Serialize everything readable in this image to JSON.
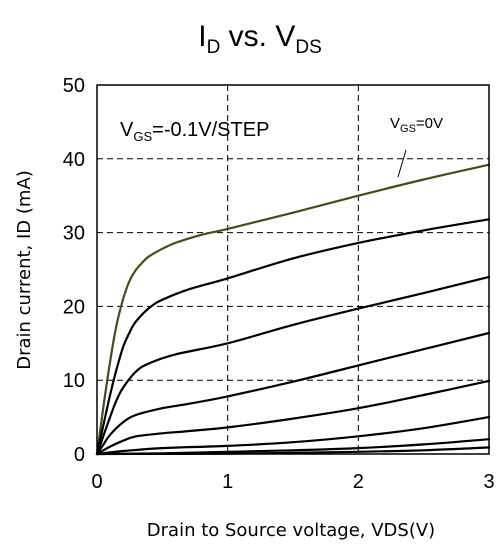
{
  "chart_data": {
    "type": "line",
    "title": {
      "main": "I",
      "sub1": "D",
      "mid": " vs. V",
      "sub2": "DS"
    },
    "xlabel": "Drain to Source voltage, VDS(V)",
    "ylabel": "Drain current, ID (mA)",
    "xlim": [
      0,
      3
    ],
    "ylim": [
      0,
      50
    ],
    "xticks": [
      0,
      1,
      2,
      3
    ],
    "yticks": [
      0,
      10,
      20,
      30,
      40,
      50
    ],
    "xtick_labels": [
      "0",
      "1",
      "2",
      "3"
    ],
    "ytick_labels": [
      "0",
      "10",
      "20",
      "30",
      "40",
      "50"
    ],
    "grid": "dashed",
    "annotation_step": {
      "v": "V",
      "sub": "GS",
      "rest": "=-0.1V/STEP"
    },
    "annotation_top": {
      "v": "V",
      "sub": "GS",
      "rest": "=0V"
    },
    "series": [
      {
        "color": "#4a4a1e",
        "points": [
          [
            0,
            0
          ],
          [
            0.05,
            6.5
          ],
          [
            0.1,
            12.5
          ],
          [
            0.15,
            17.5
          ],
          [
            0.2,
            21
          ],
          [
            0.25,
            23.5
          ],
          [
            0.3,
            25
          ],
          [
            0.35,
            26
          ],
          [
            0.4,
            26.8
          ],
          [
            0.5,
            27.8
          ],
          [
            0.6,
            28.6
          ],
          [
            0.8,
            29.7
          ],
          [
            1.0,
            30.5
          ],
          [
            1.5,
            32.7
          ],
          [
            2.0,
            35
          ],
          [
            2.5,
            37.2
          ],
          [
            3.0,
            39.2
          ]
        ]
      },
      {
        "color": "#000000",
        "points": [
          [
            0,
            0
          ],
          [
            0.05,
            4
          ],
          [
            0.1,
            8
          ],
          [
            0.15,
            11.5
          ],
          [
            0.2,
            14.5
          ],
          [
            0.25,
            16.5
          ],
          [
            0.3,
            18
          ],
          [
            0.4,
            19.8
          ],
          [
            0.5,
            20.9
          ],
          [
            0.7,
            22.3
          ],
          [
            1.0,
            23.8
          ],
          [
            1.5,
            26.5
          ],
          [
            2.0,
            28.6
          ],
          [
            2.5,
            30.3
          ],
          [
            3.0,
            31.8
          ]
        ]
      },
      {
        "color": "#000000",
        "points": [
          [
            0,
            0
          ],
          [
            0.05,
            2.5
          ],
          [
            0.1,
            5
          ],
          [
            0.15,
            7.3
          ],
          [
            0.2,
            9
          ],
          [
            0.3,
            11.2
          ],
          [
            0.4,
            12.3
          ],
          [
            0.6,
            13.5
          ],
          [
            1.0,
            15
          ],
          [
            1.5,
            17.5
          ],
          [
            2.0,
            19.7
          ],
          [
            2.5,
            21.8
          ],
          [
            3.0,
            24
          ]
        ]
      },
      {
        "color": "#000000",
        "points": [
          [
            0,
            0
          ],
          [
            0.05,
            1.3
          ],
          [
            0.1,
            2.6
          ],
          [
            0.2,
            4.3
          ],
          [
            0.3,
            5.3
          ],
          [
            0.5,
            6.2
          ],
          [
            0.7,
            6.8
          ],
          [
            1.0,
            7.8
          ],
          [
            1.5,
            9.8
          ],
          [
            2.0,
            12
          ],
          [
            2.5,
            14.2
          ],
          [
            3.0,
            16.4
          ]
        ]
      },
      {
        "color": "#000000",
        "points": [
          [
            0,
            0
          ],
          [
            0.1,
            1
          ],
          [
            0.2,
            1.8
          ],
          [
            0.3,
            2.4
          ],
          [
            0.5,
            2.8
          ],
          [
            0.7,
            3.1
          ],
          [
            1.0,
            3.6
          ],
          [
            1.5,
            4.8
          ],
          [
            2.0,
            6.2
          ],
          [
            2.5,
            8
          ],
          [
            3.0,
            9.9
          ]
        ]
      },
      {
        "color": "#000000",
        "points": [
          [
            0,
            0
          ],
          [
            0.2,
            0.4
          ],
          [
            0.5,
            0.8
          ],
          [
            1.0,
            1.1
          ],
          [
            1.5,
            1.6
          ],
          [
            2.0,
            2.4
          ],
          [
            2.5,
            3.5
          ],
          [
            3.0,
            5
          ]
        ]
      },
      {
        "color": "#000000",
        "points": [
          [
            0,
            0
          ],
          [
            0.5,
            0.1
          ],
          [
            1.0,
            0.3
          ],
          [
            1.5,
            0.5
          ],
          [
            2.0,
            0.8
          ],
          [
            2.5,
            1.3
          ],
          [
            3.0,
            2
          ]
        ]
      },
      {
        "color": "#000000",
        "points": [
          [
            0,
            0
          ],
          [
            1.0,
            0.05
          ],
          [
            2.0,
            0.3
          ],
          [
            2.5,
            0.5
          ],
          [
            3.0,
            0.9
          ]
        ]
      }
    ]
  }
}
